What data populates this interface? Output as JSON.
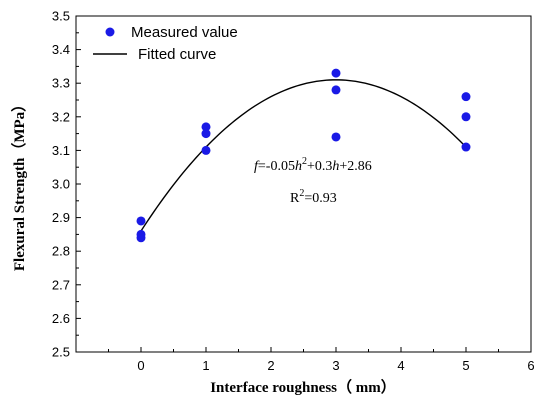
{
  "chart_data": {
    "type": "scatter",
    "xlabel": "Interface roughness（ mm）",
    "ylabel": "Flexural Strength（MPa）",
    "xlim": [
      -1,
      6
    ],
    "ylim": [
      2.5,
      3.5
    ],
    "x_ticks": [
      "-1",
      "0",
      "1",
      "2",
      "3",
      "4",
      "5",
      "6"
    ],
    "x_tick_labels": [
      "0",
      "1",
      "2",
      "3",
      "4",
      "5",
      "6"
    ],
    "y_ticks": [
      "2.5",
      "2.6",
      "2.7",
      "2.8",
      "2.9",
      "3.0",
      "3.1",
      "3.2",
      "3.3",
      "3.4",
      "3.5"
    ],
    "legend_placement": "top-left",
    "series": [
      {
        "name": "Measured value",
        "kind": "scatter",
        "color": "#1a1ae6",
        "points": [
          [
            0,
            2.89
          ],
          [
            0,
            2.85
          ],
          [
            0,
            2.84
          ],
          [
            1,
            3.17
          ],
          [
            1,
            3.15
          ],
          [
            1,
            3.1
          ],
          [
            3,
            3.33
          ],
          [
            3,
            3.28
          ],
          [
            3,
            3.14
          ],
          [
            5,
            3.26
          ],
          [
            5,
            3.2
          ],
          [
            5,
            3.11
          ]
        ]
      },
      {
        "name": "Fitted curve",
        "kind": "line",
        "color": "#000000",
        "equation": {
          "a": -0.05,
          "b": 0.3,
          "c": 2.86
        },
        "x_range": [
          0,
          5
        ]
      }
    ],
    "annotations": {
      "equation_f": "f",
      "equation_mid": "=-0.05",
      "equation_h1": "h",
      "equation_sq": "2",
      "equation_mid2": "+0.3",
      "equation_h2": "h",
      "equation_tail": "+2.86",
      "r2_base": "R",
      "r2_sup": "2",
      "r2_value": "=0.93"
    }
  }
}
